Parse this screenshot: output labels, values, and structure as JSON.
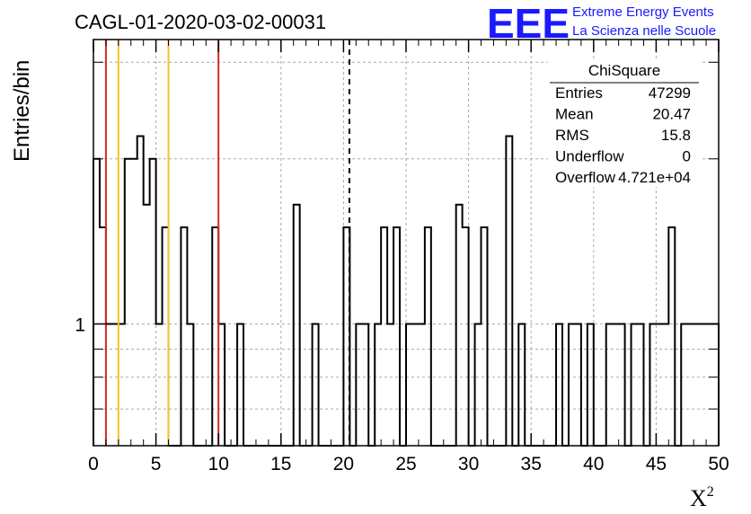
{
  "chart_data": {
    "type": "histogram",
    "title": "CAGL-01-2020-03-02-00031",
    "xlabel": "X",
    "xlabel_sup": "2",
    "ylabel": "Entries/bin",
    "xlim": [
      0,
      50
    ],
    "ylim": [
      0.6,
      3.3
    ],
    "log_y": true,
    "grid": true,
    "bin_width": 0.5,
    "x_ticks": [
      "0",
      "5",
      "10",
      "15",
      "20",
      "25",
      "30",
      "35",
      "40",
      "45",
      "50"
    ],
    "y_tick_labels": [
      "1"
    ],
    "bins": [
      {
        "x": 0.0,
        "y": 2
      },
      {
        "x": 0.5,
        "y": 1.5
      },
      {
        "x": 1.0,
        "y": 1
      },
      {
        "x": 1.5,
        "y": 1
      },
      {
        "x": 2.0,
        "y": 1
      },
      {
        "x": 2.5,
        "y": 2
      },
      {
        "x": 3.0,
        "y": 2
      },
      {
        "x": 3.5,
        "y": 2.2
      },
      {
        "x": 4.0,
        "y": 1.65
      },
      {
        "x": 4.5,
        "y": 2
      },
      {
        "x": 5.0,
        "y": 1
      },
      {
        "x": 5.5,
        "y": 1.5
      },
      {
        "x": 6.0,
        "y": 0
      },
      {
        "x": 6.5,
        "y": 0
      },
      {
        "x": 7.0,
        "y": 1.5
      },
      {
        "x": 7.5,
        "y": 1
      },
      {
        "x": 8.0,
        "y": 0
      },
      {
        "x": 8.5,
        "y": 0
      },
      {
        "x": 9.5,
        "y": 1.5
      },
      {
        "x": 10.0,
        "y": 1
      },
      {
        "x": 10.5,
        "y": 0
      },
      {
        "x": 11.0,
        "y": 0
      },
      {
        "x": 11.5,
        "y": 1
      },
      {
        "x": 16.0,
        "y": 1.65
      },
      {
        "x": 16.5,
        "y": 0
      },
      {
        "x": 17.0,
        "y": 0
      },
      {
        "x": 17.5,
        "y": 1
      },
      {
        "x": 20.0,
        "y": 1.5
      },
      {
        "x": 20.5,
        "y": 0
      },
      {
        "x": 21.0,
        "y": 1
      },
      {
        "x": 21.5,
        "y": 1
      },
      {
        "x": 22.0,
        "y": 0
      },
      {
        "x": 22.5,
        "y": 1
      },
      {
        "x": 23.0,
        "y": 1.5
      },
      {
        "x": 23.5,
        "y": 1
      },
      {
        "x": 24.0,
        "y": 1.5
      },
      {
        "x": 24.5,
        "y": 0
      },
      {
        "x": 25.0,
        "y": 1
      },
      {
        "x": 25.5,
        "y": 1
      },
      {
        "x": 26.0,
        "y": 1
      },
      {
        "x": 26.5,
        "y": 1.5
      },
      {
        "x": 27.0,
        "y": 0
      },
      {
        "x": 29.0,
        "y": 1.65
      },
      {
        "x": 29.5,
        "y": 1.5
      },
      {
        "x": 30.0,
        "y": 0
      },
      {
        "x": 30.5,
        "y": 1
      },
      {
        "x": 31.0,
        "y": 1.5
      },
      {
        "x": 31.5,
        "y": 0
      },
      {
        "x": 33.0,
        "y": 2.2
      },
      {
        "x": 33.5,
        "y": 0
      },
      {
        "x": 34.0,
        "y": 1
      },
      {
        "x": 34.5,
        "y": 0
      },
      {
        "x": 37.0,
        "y": 1
      },
      {
        "x": 37.5,
        "y": 0
      },
      {
        "x": 38.0,
        "y": 1
      },
      {
        "x": 38.5,
        "y": 1
      },
      {
        "x": 39.0,
        "y": 0
      },
      {
        "x": 39.5,
        "y": 1
      },
      {
        "x": 40.0,
        "y": 0
      },
      {
        "x": 41.0,
        "y": 1
      },
      {
        "x": 41.5,
        "y": 1
      },
      {
        "x": 42.0,
        "y": 1
      },
      {
        "x": 42.5,
        "y": 0
      },
      {
        "x": 43.0,
        "y": 1
      },
      {
        "x": 43.5,
        "y": 1
      },
      {
        "x": 44.0,
        "y": 0
      },
      {
        "x": 44.5,
        "y": 1
      },
      {
        "x": 45.0,
        "y": 1
      },
      {
        "x": 45.5,
        "y": 1
      },
      {
        "x": 46.0,
        "y": 1.5
      },
      {
        "x": 46.5,
        "y": 0
      },
      {
        "x": 47.0,
        "y": 1
      },
      {
        "x": 47.5,
        "y": 1
      },
      {
        "x": 48.0,
        "y": 1
      },
      {
        "x": 48.5,
        "y": 1
      },
      {
        "x": 49.0,
        "y": 1
      },
      {
        "x": 49.5,
        "y": 1
      }
    ],
    "vertical_lines": [
      {
        "x": 1.0,
        "color": "#d62728",
        "style": "solid"
      },
      {
        "x": 2.0,
        "color": "#f2c12e",
        "style": "solid"
      },
      {
        "x": 6.0,
        "color": "#f2c12e",
        "style": "solid"
      },
      {
        "x": 10.0,
        "color": "#d62728",
        "style": "solid"
      },
      {
        "x": 20.47,
        "color": "#000000",
        "style": "dashed"
      }
    ],
    "stats_box": {
      "title": "ChiSquare",
      "rows": [
        {
          "label": "Entries",
          "value": "47299"
        },
        {
          "label": "Mean",
          "value": "20.47"
        },
        {
          "label": "RMS",
          "value": "15.8"
        },
        {
          "label": "Underflow",
          "value": "0"
        },
        {
          "label": "Overflow",
          "value": "4.721e+04"
        }
      ]
    }
  },
  "logo": {
    "mark": "EEE",
    "line1": "Extreme Energy Events",
    "line2": "La Scienza nelle Scuole",
    "color": "#1a1aff"
  }
}
